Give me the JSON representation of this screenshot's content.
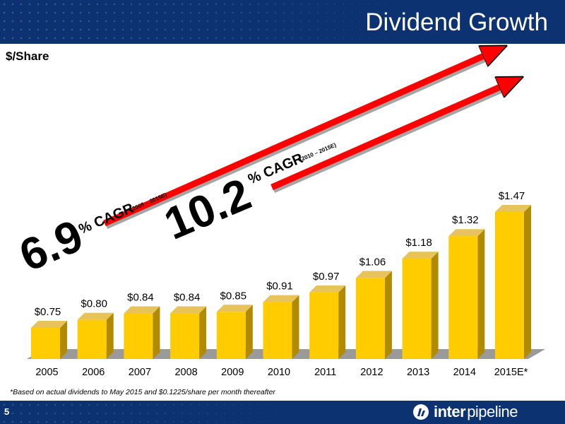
{
  "header": {
    "title": "Dividend Growth"
  },
  "footer": {
    "page_number": "5",
    "logo_word1": "inter",
    "logo_word2": "pipeline"
  },
  "footnote": "*Based on actual dividends to May 2015 and $0.1225/share per month thereafter",
  "colors": {
    "navy": "#0d3272",
    "bar_front": "#ffcc00",
    "bar_side": "#b08a00",
    "bar_top": "#e8c25a",
    "arrow": "#ff0000"
  },
  "annotations": [
    {
      "value": "6.9",
      "label": "% CAGR",
      "period": "(2005 – 2015E)"
    },
    {
      "value": "10.2",
      "label": "% CAGR",
      "period": "(2010 – 2015E)"
    }
  ],
  "chart_data": {
    "type": "bar",
    "ylabel": "$/Share",
    "categories": [
      "2005",
      "2006",
      "2007",
      "2008",
      "2009",
      "2010",
      "2011",
      "2012",
      "2013",
      "2014",
      "2015E*"
    ],
    "values": [
      0.75,
      0.8,
      0.84,
      0.84,
      0.85,
      0.91,
      0.97,
      1.06,
      1.18,
      1.32,
      1.47
    ],
    "data_labels": [
      "$0.75",
      "$0.80",
      "$0.84",
      "$0.84",
      "$0.85",
      "$0.91",
      "$0.97",
      "$1.06",
      "$1.18",
      "$1.32",
      "$1.47"
    ],
    "grid": false,
    "legend": "none"
  }
}
